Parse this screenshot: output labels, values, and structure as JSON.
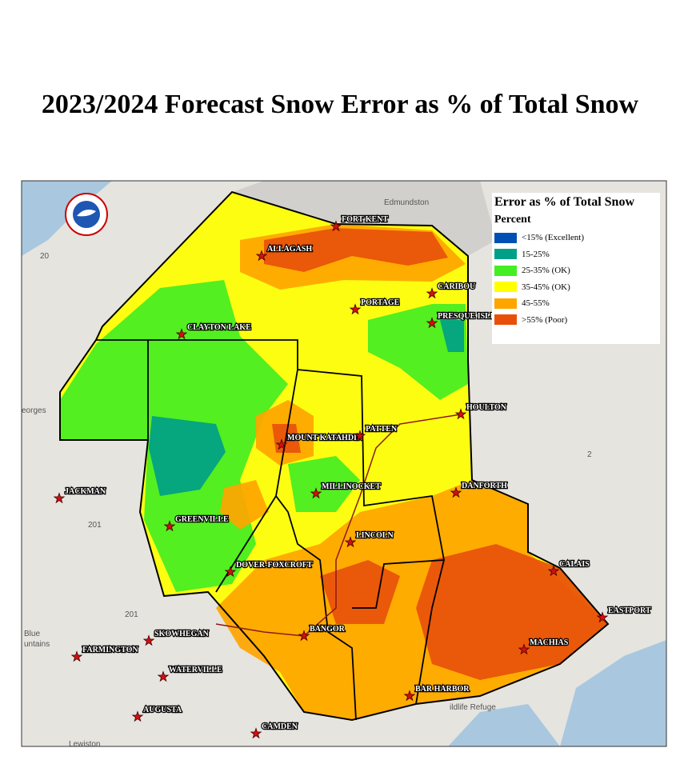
{
  "title": "2023/2024 Forecast Snow Error as % of Total Snow",
  "legend": {
    "title": "Error as % of Total Snow",
    "subtitle": "Percent",
    "items": [
      {
        "label": "<15% (Excellent)",
        "color": "#0050b4"
      },
      {
        "label": "15-25%",
        "color": "#00a088"
      },
      {
        "label": "25-35% (OK)",
        "color": "#44ee22"
      },
      {
        "label": "35-45% (OK)",
        "color": "#ffff00"
      },
      {
        "label": "45-55%",
        "color": "#ffa500"
      },
      {
        "label": ">55% (Poor)",
        "color": "#e8500a"
      }
    ]
  },
  "cities": [
    "FORT KENT",
    "ALLAGASH",
    "CARIBOU",
    "PORTAGE",
    "PRESQUE ISLE",
    "CLAYTON LAKE",
    "HOULTON",
    "MOUNT KATAHDIN",
    "PATTEN",
    "JACKMAN",
    "MILLINOCKET",
    "DANFORTH",
    "GREENVILLE",
    "LINCOLN",
    "CALAIS",
    "DOVER-FOXCROFT",
    "EASTPORT",
    "BANGOR",
    "SKOWHEGAN",
    "MACHIAS",
    "FARMINGTON",
    "WATERVILLE",
    "BAR HARBOR",
    "AUGUSTA",
    "CAMDEN"
  ],
  "basemap_labels": [
    "Edmundston",
    "eorges",
    "20",
    "2",
    "201",
    "201",
    "Blue",
    "untains",
    "Lewiston",
    "ildlife Refuge"
  ]
}
